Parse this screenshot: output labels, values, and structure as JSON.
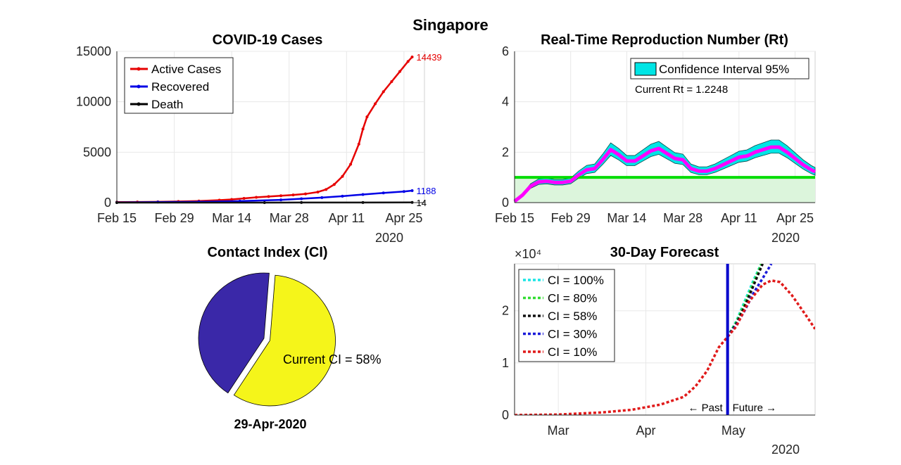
{
  "figure_title": "Singapore",
  "chart_data": [
    {
      "id": "cases",
      "type": "line",
      "title": "COVID-19 Cases",
      "x_tick_labels": [
        "Feb 15",
        "Feb 29",
        "Mar 14",
        "Mar 28",
        "Apr 11",
        "Apr 25"
      ],
      "x_year_label": "2020",
      "y_ticks": [
        0,
        5000,
        10000,
        15000
      ],
      "y_tick_labels": [
        "0",
        "5000",
        "10000",
        "15000"
      ],
      "ylim": [
        0,
        15000
      ],
      "x_start_day": 0,
      "x_end_day": 75,
      "grid": true,
      "legend_position": "top-left",
      "series": [
        {
          "name": "Active Cases",
          "color": "#e60000",
          "end_label": "14439",
          "points": [
            [
              0,
              50
            ],
            [
              5,
              60
            ],
            [
              10,
              80
            ],
            [
              15,
              110
            ],
            [
              20,
              160
            ],
            [
              25,
              240
            ],
            [
              28,
              310
            ],
            [
              31,
              420
            ],
            [
              34,
              520
            ],
            [
              37,
              600
            ],
            [
              40,
              680
            ],
            [
              43,
              760
            ],
            [
              46,
              860
            ],
            [
              49,
              1050
            ],
            [
              51,
              1300
            ],
            [
              53,
              1800
            ],
            [
              55,
              2600
            ],
            [
              57,
              3800
            ],
            [
              59,
              5800
            ],
            [
              60,
              7300
            ],
            [
              61,
              8500
            ],
            [
              63,
              9800
            ],
            [
              65,
              11000
            ],
            [
              67,
              12000
            ],
            [
              69,
              13000
            ],
            [
              71,
              14000
            ],
            [
              72,
              14439
            ]
          ]
        },
        {
          "name": "Recovered",
          "color": "#0000e6",
          "end_label": "1188",
          "points": [
            [
              0,
              20
            ],
            [
              10,
              50
            ],
            [
              20,
              80
            ],
            [
              30,
              150
            ],
            [
              40,
              270
            ],
            [
              45,
              380
            ],
            [
              50,
              500
            ],
            [
              55,
              640
            ],
            [
              60,
              800
            ],
            [
              65,
              960
            ],
            [
              70,
              1100
            ],
            [
              72,
              1188
            ]
          ]
        },
        {
          "name": "Death",
          "color": "#000000",
          "end_label": "14",
          "points": [
            [
              0,
              0
            ],
            [
              36,
              0
            ],
            [
              45,
              5
            ],
            [
              60,
              11
            ],
            [
              72,
              14
            ]
          ]
        }
      ]
    },
    {
      "id": "rt",
      "type": "area",
      "title": "Real-Time Reproduction Number (Rt)",
      "x_tick_labels": [
        "Feb 15",
        "Feb 29",
        "Mar 14",
        "Mar 28",
        "Apr 11",
        "Apr 25"
      ],
      "x_year_label": "2020",
      "y_ticks": [
        0,
        2,
        4,
        6
      ],
      "y_tick_labels": [
        "0",
        "2",
        "4",
        "6"
      ],
      "ylim": [
        0,
        6
      ],
      "x_start_day": 0,
      "x_end_day": 75,
      "threshold": 1,
      "grid": true,
      "legend_position": "top-right",
      "legend_label": "Confidence Interval 95%",
      "annotation": "Current Rt = 1.2248",
      "colors": {
        "ci": "#00e5e5",
        "line": "#ff00ff",
        "threshold": "#00dd00",
        "below_fill": "#dcf5dc"
      },
      "series": [
        {
          "name": "Rt",
          "values": [
            [
              0,
              0.05
            ],
            [
              2,
              0.3
            ],
            [
              4,
              0.65
            ],
            [
              6,
              0.82
            ],
            [
              8,
              0.85
            ],
            [
              10,
              0.8
            ],
            [
              12,
              0.8
            ],
            [
              14,
              0.85
            ],
            [
              16,
              1.1
            ],
            [
              18,
              1.3
            ],
            [
              20,
              1.35
            ],
            [
              22,
              1.7
            ],
            [
              24,
              2.1
            ],
            [
              26,
              1.9
            ],
            [
              28,
              1.65
            ],
            [
              30,
              1.65
            ],
            [
              32,
              1.85
            ],
            [
              34,
              2.05
            ],
            [
              36,
              2.15
            ],
            [
              38,
              1.95
            ],
            [
              40,
              1.75
            ],
            [
              42,
              1.7
            ],
            [
              44,
              1.35
            ],
            [
              46,
              1.25
            ],
            [
              48,
              1.25
            ],
            [
              50,
              1.35
            ],
            [
              52,
              1.5
            ],
            [
              54,
              1.65
            ],
            [
              56,
              1.8
            ],
            [
              58,
              1.85
            ],
            [
              60,
              2.0
            ],
            [
              62,
              2.1
            ],
            [
              64,
              2.2
            ],
            [
              66,
              2.2
            ],
            [
              68,
              2.0
            ],
            [
              70,
              1.75
            ],
            [
              72,
              1.5
            ],
            [
              74,
              1.3
            ],
            [
              75,
              1.2248
            ]
          ]
        }
      ]
    },
    {
      "id": "ci",
      "type": "pie",
      "title": "Contact Index (CI)",
      "slices": [
        {
          "label": "Current CI = 58%",
          "value": 58,
          "color": "#f5f51a",
          "exploded": true
        },
        {
          "label": "",
          "value": 42,
          "color": "#3a28a8",
          "exploded": false
        }
      ],
      "date_label": "29-Apr-2020"
    },
    {
      "id": "forecast",
      "type": "line",
      "title": "30-Day Forecast",
      "y_exponent_label": "×10⁴",
      "y_ticks": [
        0,
        1,
        2
      ],
      "y_tick_labels": [
        "0",
        "1",
        "2"
      ],
      "ylim": [
        0,
        2.9
      ],
      "x_tick_labels": [
        "Mar",
        "Apr",
        "May"
      ],
      "x_tick_days": [
        15,
        45,
        75
      ],
      "x_year_label": "2020",
      "x_start_day": 0,
      "x_end_day": 103,
      "today_day": 73,
      "past_label": "← Past",
      "future_label": "Future →",
      "grid": true,
      "legend_position": "top-left",
      "series": [
        {
          "name": "CI = 100%",
          "color": "#1ae5e5",
          "values": [
            [
              73,
              1.5
            ],
            [
              76,
              1.8
            ],
            [
              79,
              2.2
            ],
            [
              82,
              2.6
            ],
            [
              85,
              2.95
            ]
          ]
        },
        {
          "name": "CI = 80%",
          "color": "#33dd33",
          "values": [
            [
              73,
              1.5
            ],
            [
              76,
              1.78
            ],
            [
              79,
              2.15
            ],
            [
              82,
              2.55
            ],
            [
              85,
              2.95
            ]
          ]
        },
        {
          "name": "CI = 58%",
          "color": "#111111",
          "values": [
            [
              73,
              1.5
            ],
            [
              76,
              1.75
            ],
            [
              79,
              2.1
            ],
            [
              82,
              2.5
            ],
            [
              85,
              2.9
            ]
          ]
        },
        {
          "name": "CI = 30%",
          "color": "#1a1ad9",
          "values": [
            [
              73,
              1.5
            ],
            [
              76,
              1.72
            ],
            [
              79,
              2.02
            ],
            [
              82,
              2.35
            ],
            [
              85,
              2.62
            ],
            [
              88,
              2.9
            ]
          ]
        },
        {
          "name": "CI = 10%",
          "color": "#e01a1a",
          "values": [
            [
              0,
              0
            ],
            [
              15,
              0.01
            ],
            [
              30,
              0.05
            ],
            [
              40,
              0.1
            ],
            [
              50,
              0.2
            ],
            [
              58,
              0.35
            ],
            [
              62,
              0.55
            ],
            [
              66,
              0.85
            ],
            [
              70,
              1.3
            ],
            [
              73,
              1.5
            ],
            [
              76,
              1.7
            ],
            [
              80,
              2.15
            ],
            [
              85,
              2.5
            ],
            [
              88,
              2.58
            ],
            [
              91,
              2.55
            ],
            [
              95,
              2.3
            ],
            [
              100,
              1.9
            ],
            [
              103,
              1.65
            ]
          ]
        }
      ]
    }
  ]
}
